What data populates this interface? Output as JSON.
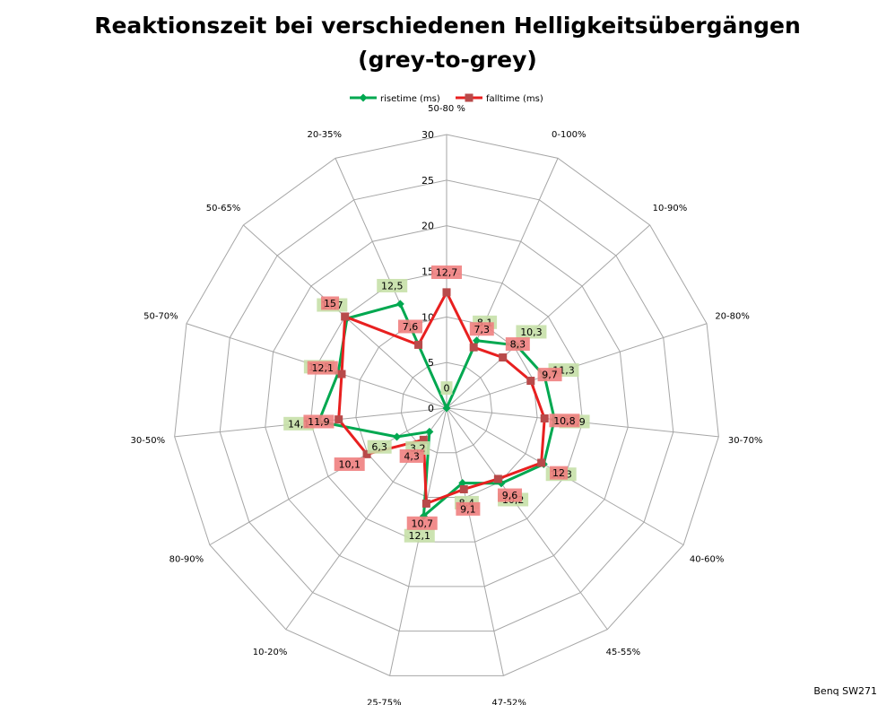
{
  "chart_data": {
    "type": "radar",
    "title_line1": "Reaktionszeit bei verschiedenen Helligkeitsübergängen",
    "title_line2": "(grey-to-grey)",
    "categories": [
      "50-80 %",
      "0-100%",
      "10-90%",
      "20-80%",
      "30-70%",
      "40-60%",
      "45-55%",
      "47-52%",
      "25-75%",
      "10-20%",
      "80-90%",
      "30-50%",
      "50-70%",
      "50-65%",
      "20-35%"
    ],
    "ylim": [
      0,
      30
    ],
    "ticks": [
      0,
      5,
      10,
      15,
      20,
      25,
      30
    ],
    "tick_labels": [
      "0",
      "5",
      "10",
      "15",
      "20",
      "25",
      "30"
    ],
    "grid": true,
    "legend_position": "top",
    "series": [
      {
        "name": "risetime (ms)",
        "color": "#00a850",
        "label_bg": "#c6e0a8",
        "marker": "diamond",
        "values": [
          0,
          8.1,
          10.3,
          11.3,
          11.9,
          12.3,
          10.2,
          8.4,
          12.1,
          3.2,
          6.3,
          14.1,
          12.5,
          14.7,
          12.5
        ],
        "labels": [
          "0",
          "8,1",
          "10,3",
          "11,3",
          "11,9",
          "12,3",
          "10,2",
          "8,4",
          "12,1",
          "3,2",
          "6,3",
          "14,1",
          "12,5",
          "14,7",
          "12,5"
        ]
      },
      {
        "name": "falltime (ms)",
        "color": "#e82020",
        "label_bg": "#f08080",
        "marker": "square",
        "values": [
          12.7,
          7.3,
          8.3,
          9.7,
          10.8,
          12,
          9.6,
          9.1,
          10.7,
          4.3,
          10.1,
          11.9,
          12.1,
          15,
          7.6
        ],
        "labels": [
          "12,7",
          "7,3",
          "8,3",
          "9,7",
          "10,8",
          "12",
          "9,6",
          "9,1",
          "10,7",
          "4,3",
          "10,1",
          "11,9",
          "12,1",
          "15",
          "7,6"
        ]
      }
    ]
  },
  "footer": "Benq SW271"
}
